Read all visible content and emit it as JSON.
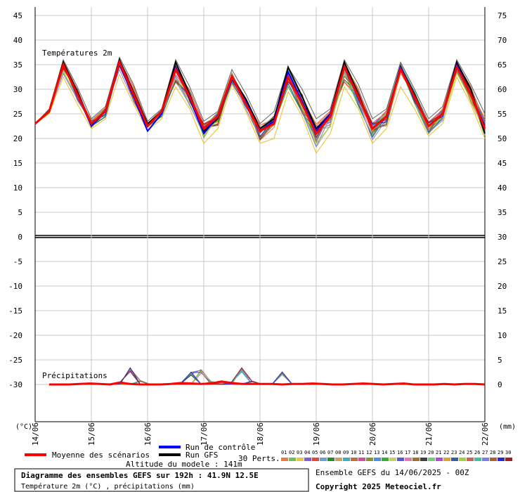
{
  "chart_data": {
    "type": "line",
    "temp_section_label": "Températures 2m",
    "precip_section_label": "Précipitations",
    "left_axis": {
      "unit_label": "(°C)",
      "ticks": [
        "45",
        "40",
        "35",
        "30",
        "25",
        "20",
        "15",
        "10",
        "5",
        "0",
        "-5",
        "-10",
        "-15",
        "-20",
        "-25",
        "-30"
      ],
      "range": [
        -30,
        45
      ]
    },
    "right_axis": {
      "unit_label": "(mm)",
      "ticks": [
        "75",
        "70",
        "65",
        "60",
        "55",
        "50",
        "45",
        "40",
        "35",
        "30",
        "25",
        "20",
        "15",
        "10",
        "5",
        "0"
      ],
      "range": [
        0,
        75
      ]
    },
    "x_ticks": [
      "14/06",
      "15/06",
      "16/06",
      "17/06",
      "18/06",
      "19/06",
      "20/06",
      "21/06",
      "22/06"
    ],
    "temperature": {
      "mean": [
        23,
        25.5,
        35,
        29,
        23,
        25.5,
        35.5,
        29,
        22.5,
        25.5,
        34,
        28.5,
        22,
        24.5,
        32.5,
        27,
        21.5,
        23,
        32.5,
        27,
        21,
        24.5,
        34.5,
        28.5,
        22,
        24.5,
        34,
        28.5,
        22.5,
        25,
        34.5,
        29,
        22
      ],
      "gfs": [
        23,
        25.5,
        35.5,
        29.5,
        23,
        25.5,
        36,
        29.5,
        23,
        25.5,
        35.5,
        29,
        21.5,
        24,
        32.5,
        28,
        22,
        24,
        34.5,
        28.5,
        22,
        25,
        35.5,
        29,
        22,
        24.5,
        34.5,
        29,
        22.5,
        25,
        35.5,
        30,
        21
      ],
      "control": [
        23,
        25.5,
        35,
        29,
        22.5,
        25.5,
        35,
        28.5,
        21.5,
        25,
        34.5,
        28,
        21,
        24.5,
        32,
        27.5,
        21.5,
        23.5,
        33.5,
        27.5,
        21.5,
        25,
        34.5,
        28.5,
        22,
        24.5,
        34.5,
        28.5,
        22.5,
        25,
        35,
        29,
        22.5
      ],
      "lower_envelope": [
        23,
        25,
        32.5,
        27,
        22,
        24,
        33,
        27,
        21.5,
        24,
        30.5,
        26,
        19,
        22,
        31,
        25.5,
        19,
        20,
        29.5,
        24.5,
        17,
        21,
        30.5,
        26,
        19,
        22,
        30.5,
        26,
        20.5,
        23,
        32.5,
        27,
        20
      ],
      "upper_envelope": [
        23,
        26,
        36,
        30.5,
        24,
        26.5,
        36.5,
        31,
        23.5,
        26,
        36,
        30.5,
        23.5,
        25.5,
        34,
        29,
        23,
        25.5,
        34.5,
        30,
        24,
        26,
        36,
        31,
        24,
        26,
        35.5,
        30,
        24,
        26.5,
        36,
        31,
        25
      ]
    },
    "precipitation_mm": {
      "mean": [
        0,
        0,
        0,
        0.1,
        0.2,
        0.1,
        0,
        0.4,
        0.1,
        0,
        0,
        0,
        0.1,
        0.3,
        0.2,
        0.1,
        0.2,
        0.6,
        0.3,
        0.1,
        0.1,
        0.1,
        0.1,
        0,
        0.1,
        0.1,
        0.2,
        0.1,
        0,
        0,
        0.1,
        0.2,
        0.1,
        0,
        0.1,
        0.2,
        0,
        0,
        0,
        0.1,
        0,
        0.1,
        0.1,
        0
      ],
      "ensemble_max": [
        0,
        0,
        0,
        0.2,
        0.2,
        0.1,
        0,
        0.5,
        3.4,
        0.8,
        0,
        0,
        0,
        0.3,
        2.5,
        3,
        0.6,
        0,
        0.5,
        3.4,
        0.7,
        0,
        0,
        2.6,
        0,
        0,
        0,
        0,
        0,
        0,
        0.1,
        0,
        0,
        0,
        0,
        0,
        0,
        0,
        0,
        0,
        0,
        0,
        0,
        0
      ]
    }
  },
  "legend": {
    "mean_label": "Moyenne des scénarios",
    "control_label": "Run de contrôle",
    "gfs_label": "Run GFS",
    "perts_label": "30 Perts.",
    "altitude": "Altitude du modele : 141m",
    "pert_colors": [
      "#e87f3f",
      "#6fbf5a",
      "#e8c83f",
      "#8a5ad0",
      "#e04a3a",
      "#70a0d0",
      "#2a8a2a",
      "#d0a060",
      "#3ab0c0",
      "#c07030",
      "#d04fa0",
      "#909030",
      "#4a90e0",
      "#30b030",
      "#c8d060",
      "#5a5ad0",
      "#e07ab0",
      "#a07030",
      "#404040",
      "#70d070",
      "#b04ad0",
      "#e0a030",
      "#3060a0",
      "#a0d040",
      "#d06060",
      "#40c0a0",
      "#8080e0",
      "#b06030",
      "#2a2ad0",
      "#a02020"
    ],
    "pert_numbers": [
      "01",
      "02",
      "03",
      "04",
      "05",
      "06",
      "07",
      "08",
      "09",
      "10",
      "11",
      "12",
      "13",
      "14",
      "15",
      "16",
      "17",
      "18",
      "19",
      "20",
      "21",
      "22",
      "23",
      "24",
      "25",
      "26",
      "27",
      "28",
      "29",
      "30"
    ]
  },
  "footer": {
    "title": "Diagramme des ensembles GEFS sur 192h : 41.9N 12.5E",
    "subtitle": "Température 2m (°C) , précipitations (mm)",
    "run_info": "Ensemble GEFS du 14/06/2025 - 00Z",
    "copyright": "Copyright 2025 Meteociel.fr"
  },
  "colors": {
    "mean": "#ff0000",
    "control": "#0000ff",
    "gfs": "#000000",
    "grid": "#c8c8c8"
  }
}
